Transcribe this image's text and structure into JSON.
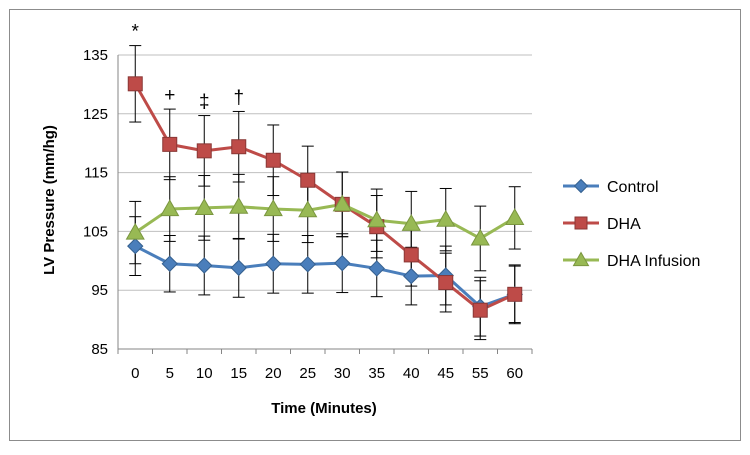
{
  "chart_data": {
    "type": "line",
    "title": "",
    "xlabel": "Time (Minutes)",
    "ylabel": "LV Pressure (mm/hg)",
    "ylim": [
      85,
      135
    ],
    "yticks": [
      85,
      95,
      105,
      115,
      125,
      135
    ],
    "categories": [
      "0",
      "5",
      "10",
      "15",
      "20",
      "25",
      "30",
      "35",
      "40",
      "45",
      "55",
      "60"
    ],
    "grid": "horizontal",
    "legend_position": "right",
    "series": [
      {
        "name": "Control",
        "color": "#4a7ebb",
        "marker": "diamond",
        "values": [
          102.5,
          99.5,
          99.2,
          98.8,
          99.5,
          99.4,
          99.6,
          98.7,
          97.4,
          97.5,
          92.2,
          94.3
        ],
        "errors": [
          5.0,
          4.8,
          5.0,
          5.0,
          5.0,
          4.9,
          5.0,
          4.8,
          4.9,
          5.0,
          5.0,
          4.8
        ]
      },
      {
        "name": "DHA",
        "color": "#be4b48",
        "marker": "square",
        "values": [
          130.1,
          119.8,
          118.7,
          119.4,
          117.1,
          113.7,
          109.6,
          105.8,
          101.0,
          96.3,
          91.6,
          94.3
        ],
        "errors": [
          6.5,
          6.0,
          6.0,
          6.0,
          6.0,
          5.8,
          5.5,
          5.3,
          5.3,
          5.0,
          5.0,
          5.0
        ]
      },
      {
        "name": "DHA Infusion",
        "color": "#98b954",
        "marker": "triangle",
        "values": [
          104.8,
          108.8,
          109.0,
          109.2,
          108.8,
          108.6,
          109.6,
          106.9,
          106.3,
          107.0,
          103.8,
          107.3
        ],
        "errors": [
          5.3,
          5.5,
          5.5,
          5.5,
          5.5,
          5.5,
          5.5,
          5.3,
          5.5,
          5.3,
          5.5,
          5.3
        ]
      }
    ],
    "annotations": [
      {
        "category_index": 0,
        "symbol": "*"
      },
      {
        "category_index": 1,
        "symbol": "+"
      },
      {
        "category_index": 2,
        "symbol": "‡"
      },
      {
        "category_index": 3,
        "symbol": "†"
      }
    ]
  }
}
